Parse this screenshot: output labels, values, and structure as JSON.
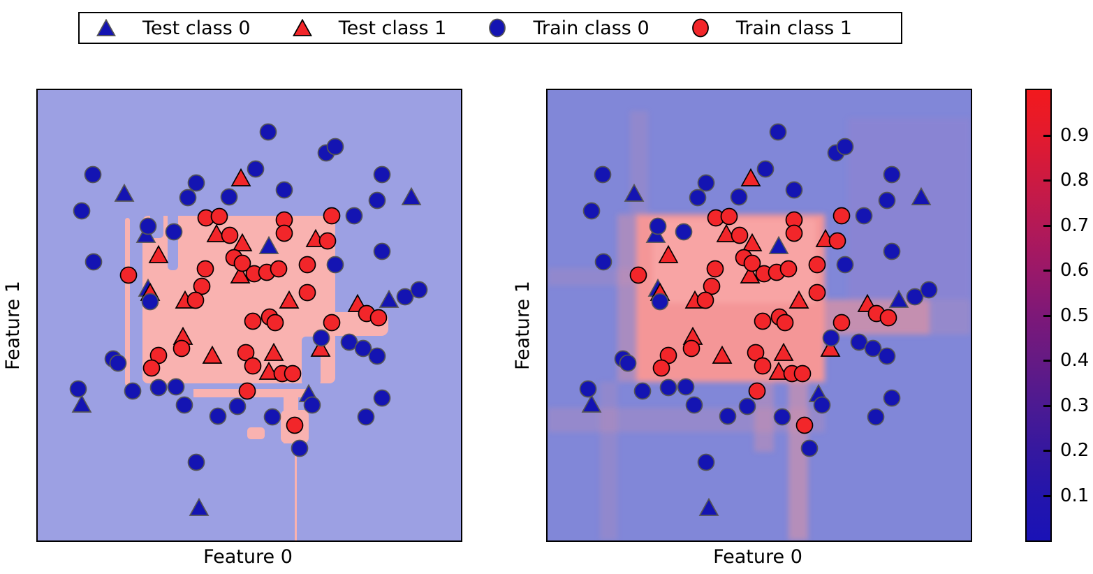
{
  "legend": {
    "items": [
      {
        "label": "Test class 0",
        "marker": "triangle",
        "fill": "#1414b2",
        "edge": "#555555"
      },
      {
        "label": "Test class 1",
        "marker": "triangle",
        "fill": "#f2262a",
        "edge": "#000000"
      },
      {
        "label": "Train class 0",
        "marker": "circle",
        "fill": "#1414b2",
        "edge": "#555555"
      },
      {
        "label": "Train class 1",
        "marker": "circle",
        "fill": "#f2262a",
        "edge": "#000000"
      }
    ]
  },
  "axes": {
    "xlabel": "Feature 0",
    "ylabel": "Feature 1"
  },
  "colors": {
    "left_bg": "#9ca0e3",
    "left_region": "#f9b2b0",
    "right_bg": "#8187d8",
    "right_region": "#f49697",
    "class0_marker": "#1414b2",
    "class1_marker": "#f2262a"
  },
  "chart_data": {
    "type": "scatter",
    "title": "",
    "panels": [
      {
        "id": "left",
        "xlabel": "Feature 0",
        "ylabel": "Feature 1",
        "background": "hard decision-boundary regions (blue vs pink)"
      },
      {
        "id": "right",
        "xlabel": "Feature 0",
        "ylabel": "Feature 1",
        "background": "soft predicted-probability shading (blue to pink blocks)"
      }
    ],
    "coord_system": "pixel coordinates inside each 606x645 plot area, origin top-left; both panels show the identical point set; axes are unlabeled numerically",
    "series": [
      {
        "name": "Test class 0",
        "marker": "triangle",
        "color": "#1414b2",
        "edge": "#555555",
        "points": [
          [
            124,
            148
          ],
          [
            155,
            207
          ],
          [
            331,
            223
          ],
          [
            158,
            284
          ],
          [
            63,
            450
          ],
          [
            231,
            598
          ],
          [
            535,
            153
          ],
          [
            503,
            300
          ],
          [
            388,
            435
          ]
        ]
      },
      {
        "name": "Test class 1",
        "marker": "triangle",
        "color": "#f2262a",
        "edge": "#000000",
        "points": [
          [
            291,
            126
          ],
          [
            256,
            206
          ],
          [
            293,
            219
          ],
          [
            398,
            213
          ],
          [
            173,
            236
          ],
          [
            161,
            290
          ],
          [
            211,
            301
          ],
          [
            290,
            265
          ],
          [
            360,
            301
          ],
          [
            458,
            306
          ],
          [
            208,
            353
          ],
          [
            250,
            380
          ],
          [
            338,
            376
          ],
          [
            405,
            370
          ],
          [
            331,
            403
          ]
        ]
      },
      {
        "name": "Train class 1",
        "marker": "circle",
        "color": "#f2262a",
        "edge": "#000000",
        "points": [
          [
            241,
            183
          ],
          [
            260,
            181
          ],
          [
            275,
            208
          ],
          [
            353,
            186
          ],
          [
            353,
            205
          ],
          [
            421,
            180
          ],
          [
            415,
            216
          ],
          [
            130,
            265
          ],
          [
            240,
            256
          ],
          [
            235,
            281
          ],
          [
            226,
            301
          ],
          [
            281,
            240
          ],
          [
            293,
            248
          ],
          [
            310,
            263
          ],
          [
            328,
            261
          ],
          [
            345,
            256
          ],
          [
            386,
            250
          ],
          [
            386,
            290
          ],
          [
            173,
            380
          ],
          [
            163,
            398
          ],
          [
            206,
            370
          ],
          [
            298,
            376
          ],
          [
            308,
            395
          ],
          [
            350,
            406
          ],
          [
            365,
            406
          ],
          [
            300,
            431
          ],
          [
            421,
            333
          ],
          [
            332,
            325
          ],
          [
            340,
            333
          ],
          [
            471,
            320
          ],
          [
            488,
            326
          ],
          [
            368,
            480
          ],
          [
            308,
            331
          ]
        ]
      },
      {
        "name": "Train class 0",
        "marker": "circle",
        "color": "#1414b2",
        "edge": "#555555",
        "points": [
          [
            79,
            121
          ],
          [
            63,
            173
          ],
          [
            227,
            133
          ],
          [
            215,
            154
          ],
          [
            274,
            153
          ],
          [
            312,
            113
          ],
          [
            330,
            60
          ],
          [
            413,
            90
          ],
          [
            426,
            81
          ],
          [
            353,
            143
          ],
          [
            493,
            121
          ],
          [
            486,
            158
          ],
          [
            453,
            180
          ],
          [
            493,
            231
          ],
          [
            426,
            250
          ],
          [
            80,
            246
          ],
          [
            161,
            303
          ],
          [
            158,
            195
          ],
          [
            195,
            203
          ],
          [
            108,
            385
          ],
          [
            115,
            391
          ],
          [
            58,
            428
          ],
          [
            136,
            431
          ],
          [
            173,
            426
          ],
          [
            198,
            425
          ],
          [
            210,
            451
          ],
          [
            258,
            467
          ],
          [
            286,
            453
          ],
          [
            227,
            533
          ],
          [
            406,
            355
          ],
          [
            446,
            361
          ],
          [
            466,
            370
          ],
          [
            486,
            381
          ],
          [
            393,
            451
          ],
          [
            336,
            468
          ],
          [
            375,
            513
          ],
          [
            493,
            441
          ],
          [
            470,
            468
          ],
          [
            526,
            296
          ],
          [
            546,
            286
          ]
        ]
      }
    ],
    "colorbar": {
      "tick_labels": [
        "0.9",
        "0.8",
        "0.7",
        "0.6",
        "0.5",
        "0.4",
        "0.3",
        "0.2",
        "0.1"
      ],
      "range": [
        0,
        1
      ],
      "gradient_stops_top_to_bottom": [
        "#f2191d",
        "#e31a2e",
        "#cc1a42",
        "#b41956",
        "#9a1869",
        "#7d1878",
        "#651a84",
        "#4c1a92",
        "#35189f",
        "#2315ac",
        "#1a12b6"
      ]
    },
    "legend_position": "top, horizontal, boxed",
    "grid": false
  }
}
